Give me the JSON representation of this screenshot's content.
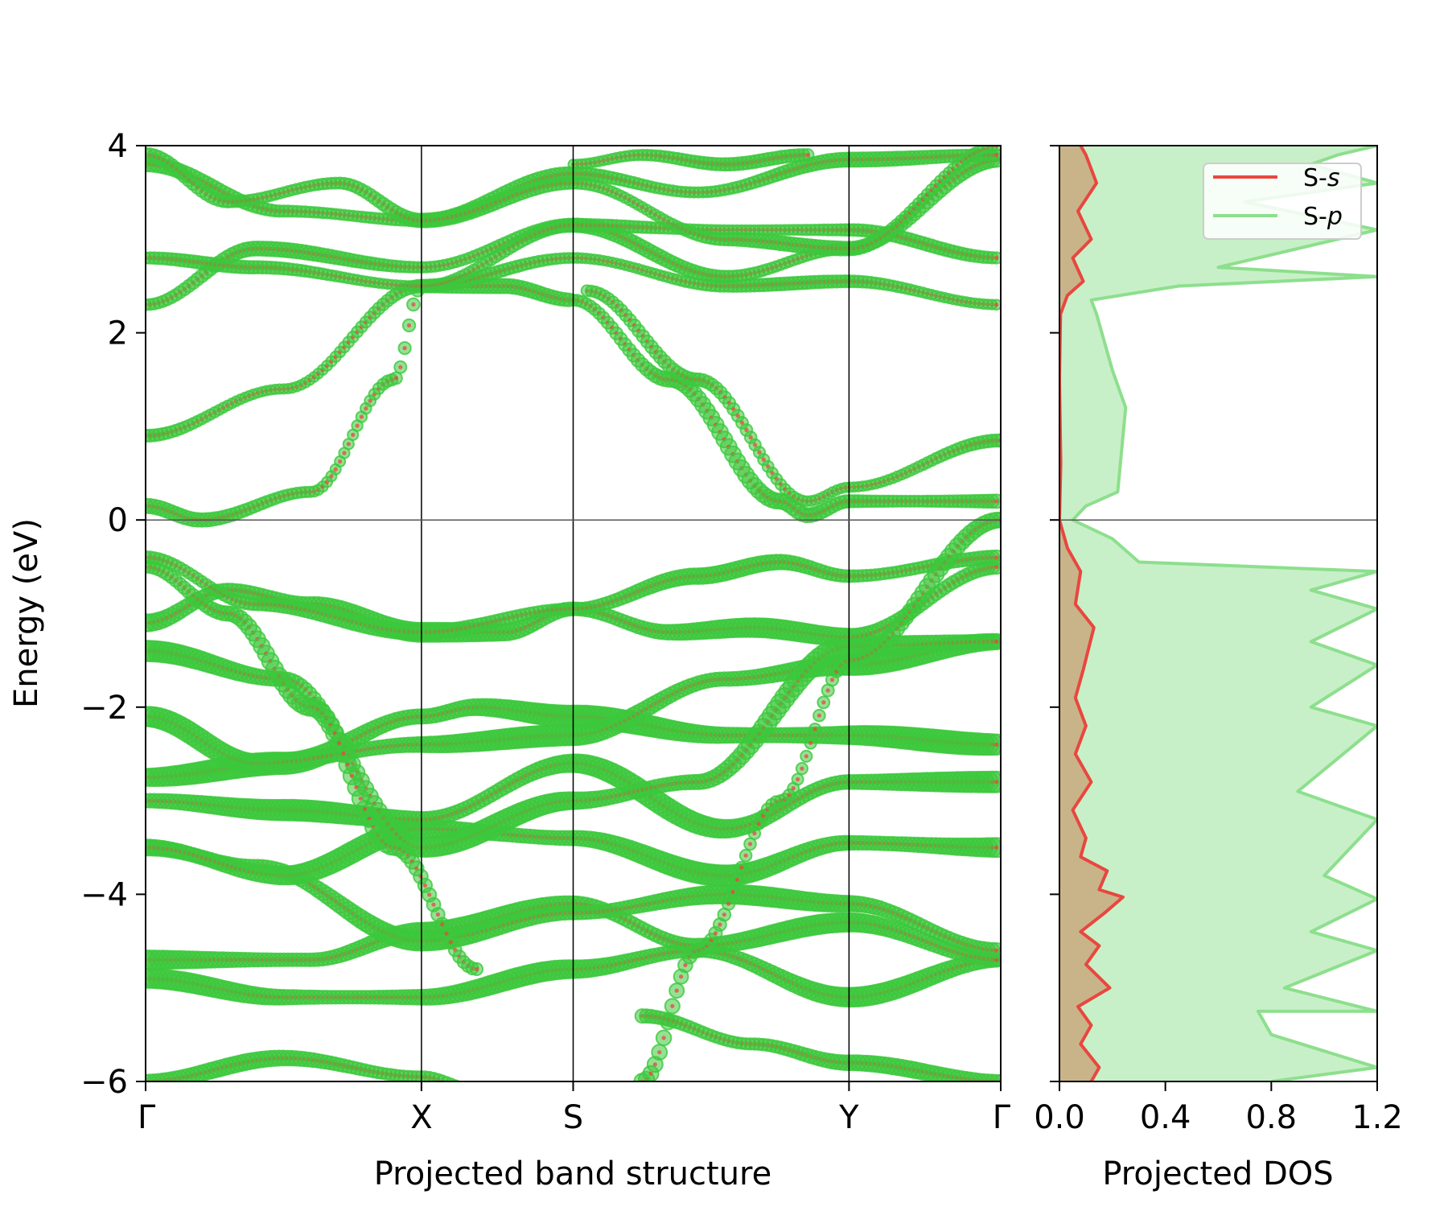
{
  "chart_data": [
    {
      "type": "scatter",
      "panel": "band",
      "xlabel": "Projected band structure",
      "ylabel": "Energy (eV)",
      "ylim": [
        -6,
        4
      ],
      "yticks": [
        -6,
        -4,
        -2,
        0,
        2,
        4
      ],
      "ytick_labels": [
        "−6",
        "−4",
        "−2",
        "0",
        "2",
        "4"
      ],
      "kpath": [
        {
          "label": "Γ",
          "x": 0
        },
        {
          "label": "X",
          "x": 1.0
        },
        {
          "label": "S",
          "x": 1.55
        },
        {
          "label": "Y",
          "x": 2.55
        },
        {
          "label": "Γ",
          "x": 3.1
        }
      ],
      "colors": {
        "s": "#e8473f",
        "p": "#3cc83c"
      },
      "bands": [
        {
          "pts": [
            [
              0,
              -6.0
            ],
            [
              0.5,
              -5.75
            ],
            [
              1.0,
              -5.95
            ],
            [
              1.2,
              -6.1
            ]
          ],
          "w": 0.6
        },
        {
          "pts": [
            [
              0,
              -4.9
            ],
            [
              0.5,
              -5.1
            ],
            [
              1.0,
              -5.1
            ],
            [
              1.55,
              -4.8
            ],
            [
              2.0,
              -4.6
            ],
            [
              2.55,
              -5.1
            ],
            [
              3.1,
              -4.7
            ]
          ],
          "w": 0.8
        },
        {
          "pts": [
            [
              0,
              -4.7
            ],
            [
              0.6,
              -4.7
            ],
            [
              1.0,
              -4.4
            ],
            [
              1.55,
              -4.1
            ],
            [
              2.0,
              -4.55
            ],
            [
              2.55,
              -4.3
            ],
            [
              3.1,
              -4.7
            ]
          ],
          "w": 0.8
        },
        {
          "pts": [
            [
              0,
              -3.5
            ],
            [
              0.4,
              -3.7
            ],
            [
              1.0,
              -4.5
            ],
            [
              1.55,
              -4.2
            ],
            [
              2.1,
              -4.0
            ],
            [
              2.55,
              -4.1
            ],
            [
              3.1,
              -4.6
            ]
          ],
          "w": 0.8
        },
        {
          "pts": [
            [
              0,
              -3.5
            ],
            [
              0.5,
              -3.8
            ],
            [
              1.0,
              -3.3
            ],
            [
              1.55,
              -3.4
            ],
            [
              2.1,
              -3.8
            ],
            [
              2.55,
              -3.45
            ],
            [
              3.1,
              -3.5
            ]
          ],
          "w": 0.9
        },
        {
          "pts": [
            [
              0,
              -3.0
            ],
            [
              0.5,
              -3.1
            ],
            [
              1.0,
              -3.2
            ],
            [
              1.55,
              -2.6
            ],
            [
              2.1,
              -3.3
            ],
            [
              2.55,
              -2.8
            ],
            [
              3.1,
              -2.8
            ]
          ],
          "w": 0.9
        },
        {
          "pts": [
            [
              0,
              -2.75
            ],
            [
              0.5,
              -2.6
            ],
            [
              1.0,
              -2.1
            ],
            [
              1.2,
              -2.0
            ],
            [
              1.55,
              -2.1
            ],
            [
              2.1,
              -2.3
            ],
            [
              2.55,
              -2.3
            ],
            [
              3.1,
              -2.4
            ]
          ],
          "w": 1.0
        },
        {
          "pts": [
            [
              0,
              -2.1
            ],
            [
              0.4,
              -2.6
            ],
            [
              1.0,
              -2.4
            ],
            [
              1.55,
              -2.3
            ],
            [
              2.1,
              -1.7
            ],
            [
              2.55,
              -1.55
            ],
            [
              3.1,
              -1.3
            ]
          ],
          "w": 0.9
        },
        {
          "pts": [
            [
              0,
              -1.4
            ],
            [
              0.5,
              -1.7
            ],
            [
              1.0,
              -3.5
            ],
            [
              1.55,
              -3.0
            ],
            [
              2.0,
              -2.8
            ],
            [
              2.55,
              -1.35
            ],
            [
              3.1,
              -1.3
            ]
          ],
          "w": 0.9
        },
        {
          "pts": [
            [
              0,
              -1.1
            ],
            [
              0.3,
              -0.75
            ],
            [
              0.6,
              -0.9
            ],
            [
              1.0,
              -1.2
            ],
            [
              1.3,
              -1.2
            ],
            [
              1.55,
              -0.95
            ],
            [
              1.9,
              -1.2
            ],
            [
              2.2,
              -1.15
            ],
            [
              2.55,
              -1.25
            ],
            [
              3.1,
              -0.5
            ]
          ],
          "w": 0.8
        },
        {
          "pts": [
            [
              0,
              -0.4
            ],
            [
              0.4,
              -0.9
            ],
            [
              1.0,
              -1.2
            ],
            [
              1.55,
              -0.95
            ],
            [
              2.0,
              -0.6
            ],
            [
              2.3,
              -0.45
            ],
            [
              2.55,
              -0.6
            ],
            [
              3.1,
              -0.4
            ]
          ],
          "w": 0.6
        },
        {
          "pts": [
            [
              0,
              -0.5
            ],
            [
              0.3,
              -1.0
            ],
            [
              0.6,
              -2.0
            ],
            [
              0.9,
              -3.5
            ],
            [
              1.2,
              -4.8
            ]
          ],
          "w": 0.7
        },
        {
          "pts": [
            [
              1.8,
              -6.0
            ],
            [
              2.0,
              -4.6
            ],
            [
              2.3,
              -3.0
            ],
            [
              2.55,
              -1.5
            ],
            [
              3.1,
              0.0
            ]
          ],
          "w": 0.6
        },
        {
          "pts": [
            [
              1.8,
              -5.3
            ],
            [
              2.2,
              -5.6
            ],
            [
              2.55,
              -5.8
            ],
            [
              3.1,
              -6.0
            ]
          ],
          "w": 0.6
        },
        {
          "pts": [
            [
              0,
              0.15
            ],
            [
              0.2,
              0.0
            ],
            [
              0.6,
              0.3
            ],
            [
              0.9,
              1.5
            ],
            [
              1.0,
              2.5
            ],
            [
              1.3,
              2.5
            ],
            [
              1.55,
              2.35
            ]
          ],
          "w": 0.5
        },
        {
          "pts": [
            [
              0,
              0.9
            ],
            [
              0.5,
              1.4
            ],
            [
              1.0,
              2.5
            ],
            [
              1.55,
              2.8
            ],
            [
              2.1,
              2.5
            ],
            [
              2.55,
              2.55
            ],
            [
              3.1,
              2.3
            ]
          ],
          "w": 0.4
        },
        {
          "pts": [
            [
              1.55,
              2.35
            ],
            [
              1.9,
              1.5
            ],
            [
              2.3,
              0.2
            ],
            [
              2.4,
              0.05
            ],
            [
              2.55,
              0.2
            ],
            [
              3.1,
              0.2
            ]
          ],
          "w": 0.6
        },
        {
          "pts": [
            [
              1.6,
              2.45
            ],
            [
              2.0,
              1.5
            ],
            [
              2.4,
              0.2
            ],
            [
              2.55,
              0.35
            ],
            [
              3.1,
              0.85
            ]
          ],
          "w": 0.4
        },
        {
          "pts": [
            [
              0,
              2.3
            ],
            [
              0.4,
              2.9
            ],
            [
              1.0,
              2.7
            ],
            [
              1.55,
              3.15
            ],
            [
              2.1,
              2.6
            ],
            [
              2.55,
              2.9
            ],
            [
              3.1,
              3.85
            ]
          ],
          "w": 0.5
        },
        {
          "pts": [
            [
              0,
              2.8
            ],
            [
              0.4,
              2.7
            ],
            [
              1.0,
              2.5
            ],
            [
              1.55,
              3.15
            ],
            [
              2.1,
              3.1
            ],
            [
              2.55,
              3.1
            ],
            [
              3.1,
              2.8
            ]
          ],
          "w": 0.4
        },
        {
          "pts": [
            [
              0,
              3.8
            ],
            [
              0.5,
              3.3
            ],
            [
              1.0,
              3.2
            ],
            [
              1.55,
              3.7
            ],
            [
              2.0,
              3.5
            ],
            [
              2.55,
              3.85
            ],
            [
              3.1,
              3.9
            ]
          ],
          "w": 0.5
        },
        {
          "pts": [
            [
              0,
              3.9
            ],
            [
              0.3,
              3.4
            ],
            [
              0.7,
              3.6
            ],
            [
              1.0,
              3.2
            ],
            [
              1.55,
              3.6
            ],
            [
              2.1,
              3.0
            ],
            [
              2.55,
              2.9
            ],
            [
              3.1,
              4.0
            ]
          ],
          "w": 0.5
        },
        {
          "pts": [
            [
              1.55,
              3.8
            ],
            [
              1.8,
              3.9
            ],
            [
              2.1,
              3.8
            ],
            [
              2.4,
              3.9
            ]
          ],
          "w": 0.4
        }
      ]
    },
    {
      "type": "line",
      "panel": "dos",
      "xlabel": "Projected DOS",
      "xlim": [
        0,
        1.2
      ],
      "xticks": [
        0,
        0.4,
        0.8,
        1.2
      ],
      "xtick_labels": [
        "0.0",
        "0.4",
        "0.8",
        "1.2"
      ],
      "ylim": [
        -6,
        4
      ],
      "legend_position": "top-right",
      "series": [
        {
          "name": "S-",
          "name_italic": "s",
          "color": "#e8473f",
          "fill": "#c9b48a",
          "points": [
            [
              0.12,
              -6.0
            ],
            [
              0.15,
              -5.85
            ],
            [
              0.08,
              -5.6
            ],
            [
              0.12,
              -5.4
            ],
            [
              0.07,
              -5.2
            ],
            [
              0.19,
              -5.0
            ],
            [
              0.1,
              -4.75
            ],
            [
              0.15,
              -4.55
            ],
            [
              0.08,
              -4.4
            ],
            [
              0.17,
              -4.2
            ],
            [
              0.24,
              -4.03
            ],
            [
              0.15,
              -3.95
            ],
            [
              0.18,
              -3.75
            ],
            [
              0.08,
              -3.6
            ],
            [
              0.1,
              -3.4
            ],
            [
              0.05,
              -3.1
            ],
            [
              0.12,
              -2.8
            ],
            [
              0.06,
              -2.5
            ],
            [
              0.1,
              -2.2
            ],
            [
              0.06,
              -1.9
            ],
            [
              0.09,
              -1.6
            ],
            [
              0.13,
              -1.15
            ],
            [
              0.06,
              -0.9
            ],
            [
              0.08,
              -0.55
            ],
            [
              0.03,
              -0.3
            ],
            [
              0.0,
              0.0
            ],
            [
              0.005,
              0.6
            ],
            [
              0.0,
              1.5
            ],
            [
              0.004,
              2.2
            ],
            [
              0.03,
              2.4
            ],
            [
              0.09,
              2.55
            ],
            [
              0.05,
              2.8
            ],
            [
              0.12,
              3.0
            ],
            [
              0.07,
              3.3
            ],
            [
              0.14,
              3.6
            ],
            [
              0.1,
              3.9
            ],
            [
              0.08,
              4.0
            ]
          ]
        },
        {
          "name": "S-",
          "name_italic": "p",
          "color": "#8ddf8d",
          "fill": "#c8f0c8",
          "points": [
            [
              0.8,
              -6.0
            ],
            [
              1.2,
              -5.85
            ],
            [
              0.8,
              -5.5
            ],
            [
              0.75,
              -5.25
            ],
            [
              1.2,
              -5.25
            ],
            [
              0.85,
              -5.0
            ],
            [
              1.2,
              -4.6
            ],
            [
              0.95,
              -4.4
            ],
            [
              1.2,
              -4.05
            ],
            [
              1.0,
              -3.8
            ],
            [
              1.2,
              -3.2
            ],
            [
              0.9,
              -2.9
            ],
            [
              1.2,
              -2.2
            ],
            [
              0.95,
              -2.0
            ],
            [
              1.2,
              -1.55
            ],
            [
              0.95,
              -1.3
            ],
            [
              1.2,
              -0.95
            ],
            [
              0.95,
              -0.75
            ],
            [
              1.2,
              -0.55
            ],
            [
              0.3,
              -0.45
            ],
            [
              0.2,
              -0.2
            ],
            [
              0.05,
              0.0
            ],
            [
              0.1,
              0.15
            ],
            [
              0.22,
              0.3
            ],
            [
              0.25,
              1.2
            ],
            [
              0.2,
              1.6
            ],
            [
              0.14,
              2.2
            ],
            [
              0.12,
              2.35
            ],
            [
              0.45,
              2.5
            ],
            [
              1.2,
              2.6
            ],
            [
              0.6,
              2.7
            ],
            [
              1.2,
              3.1
            ],
            [
              0.7,
              3.4
            ],
            [
              1.2,
              3.6
            ],
            [
              0.95,
              3.8
            ],
            [
              1.05,
              3.9
            ],
            [
              1.2,
              4.0
            ]
          ]
        }
      ]
    }
  ]
}
